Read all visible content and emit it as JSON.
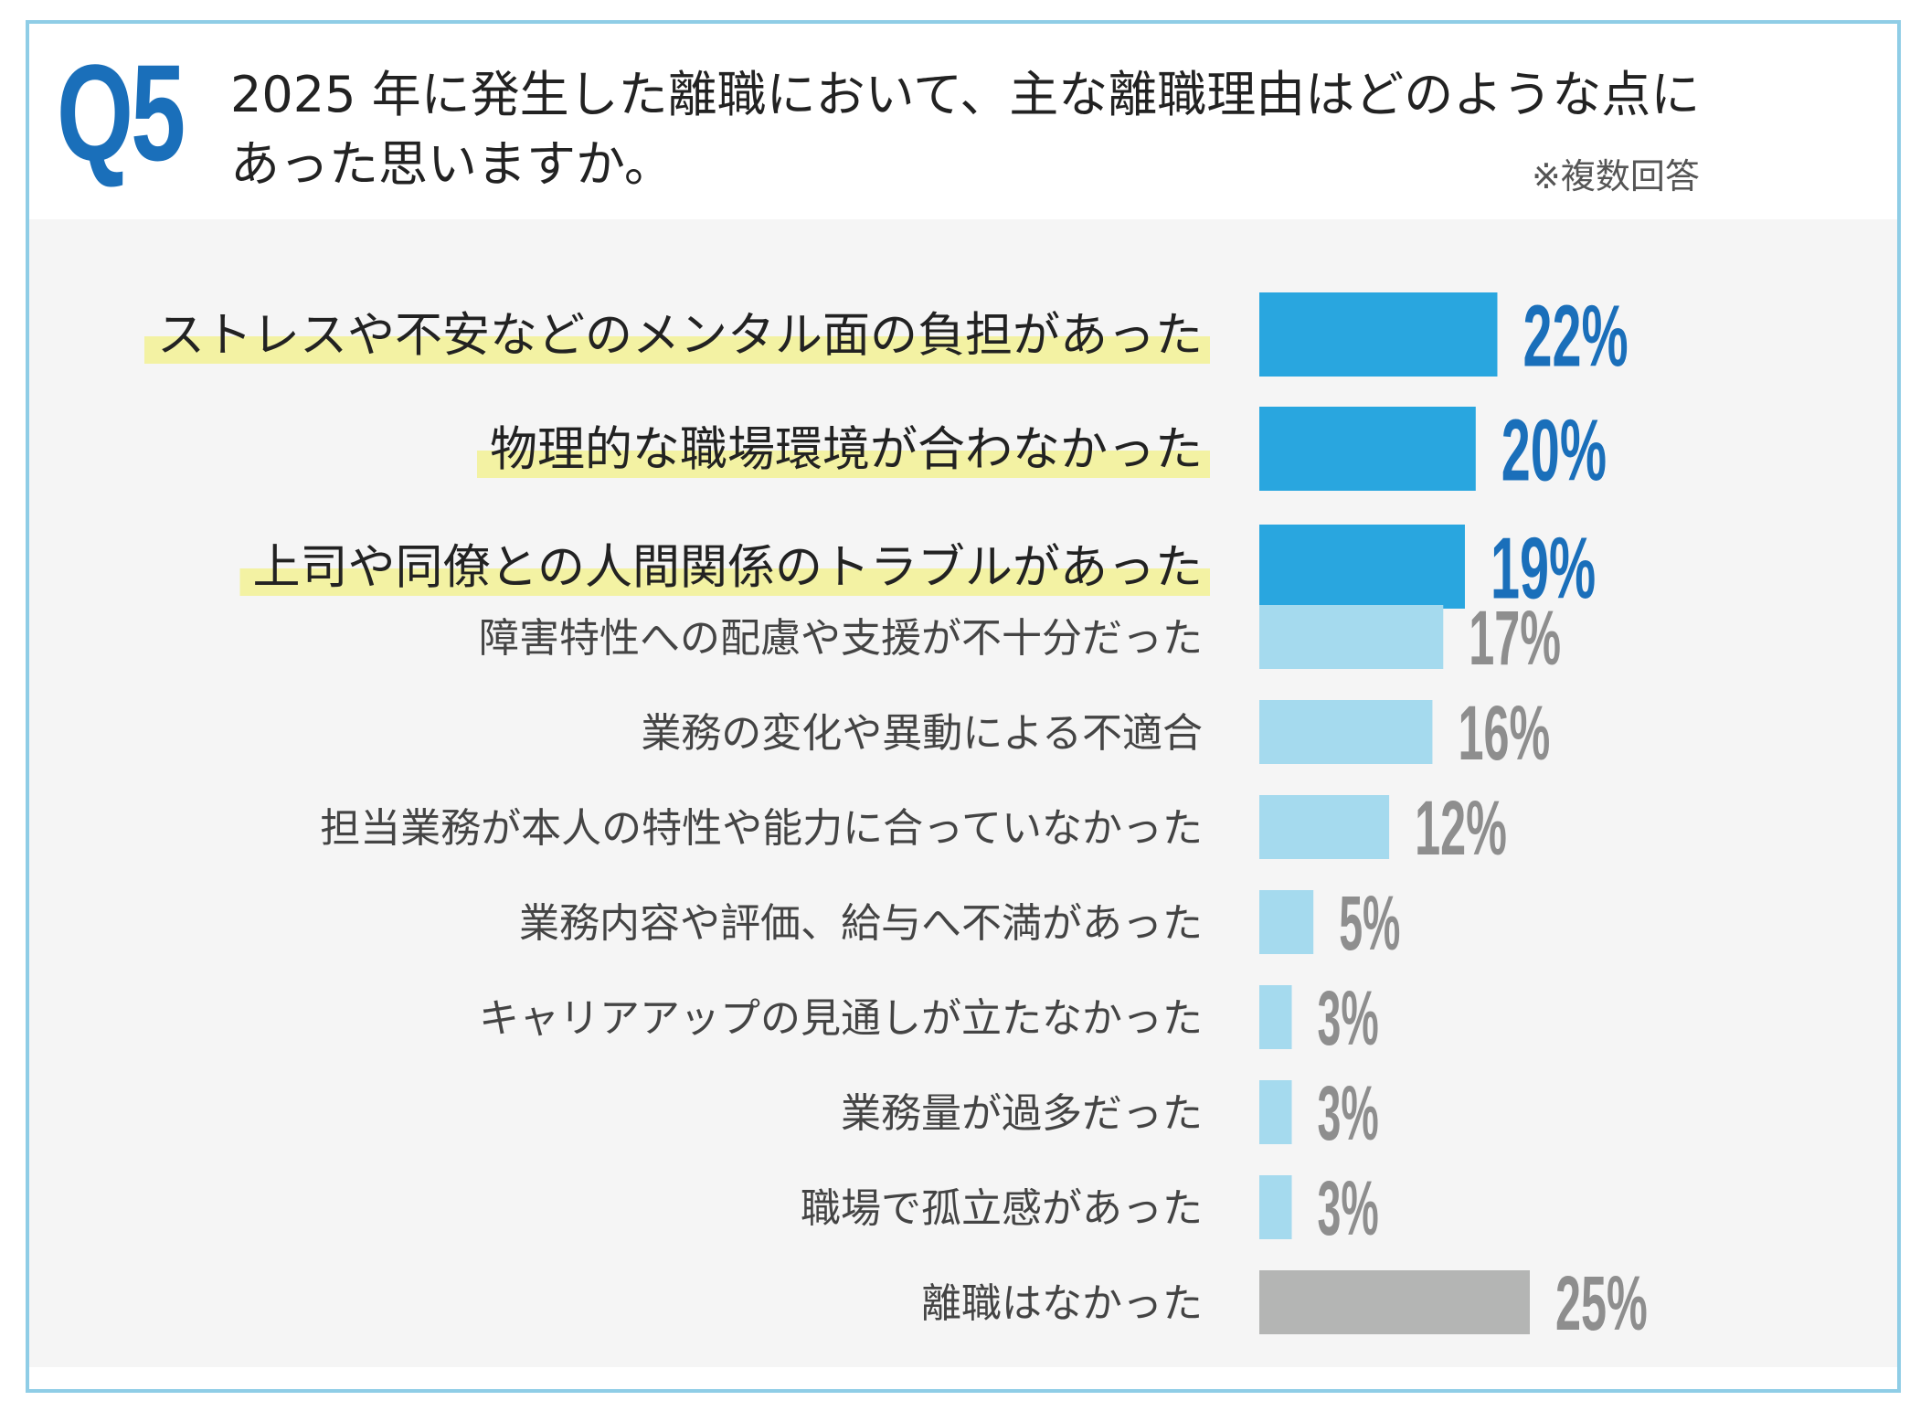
{
  "header": {
    "q_label": "Q5",
    "question_line1": "2025 年に発生した離職において、主な離職理由はどのような点に",
    "question_line2": "あった思いますか。",
    "note": "※複数回答"
  },
  "colors": {
    "highlight_bar": "#29a6df",
    "normal_bar": "#a5daee",
    "none_bar": "#b4b5b4",
    "highlight_value": "#1a6fba",
    "normal_value": "#8e8e8e",
    "label_highlight_bg": "#f3f2a3"
  },
  "chart_data": {
    "type": "bar",
    "orientation": "horizontal",
    "title": "2025 年に発生した離職において、主な離職理由はどのような点にあった思いますか。",
    "unit": "%",
    "categories": [
      "ストレスや不安などのメンタル面の負担があった",
      "物理的な職場環境が合わなかった",
      "上司や同僚との人間関係のトラブルがあった",
      "障害特性への配慮や支援が不十分だった",
      "業務の変化や異動による不適合",
      "担当業務が本人の特性や能力に合っていなかった",
      "業務内容や評価、給与へ不満があった",
      "キャリアアップの見通しが立たなかった",
      "業務量が過多だった",
      "職場で孤立感があった",
      "離職はなかった"
    ],
    "values": [
      22,
      20,
      19,
      17,
      16,
      12,
      5,
      3,
      3,
      3,
      25
    ],
    "value_labels": [
      "22%",
      "20%",
      "19%",
      "17%",
      "16%",
      "12%",
      "5%",
      "3%",
      "3%",
      "3%",
      "25%"
    ],
    "highlighted": [
      true,
      true,
      true,
      false,
      false,
      false,
      false,
      false,
      false,
      false,
      false
    ],
    "xlim": [
      0,
      25
    ],
    "grid": false,
    "legend": "none"
  }
}
